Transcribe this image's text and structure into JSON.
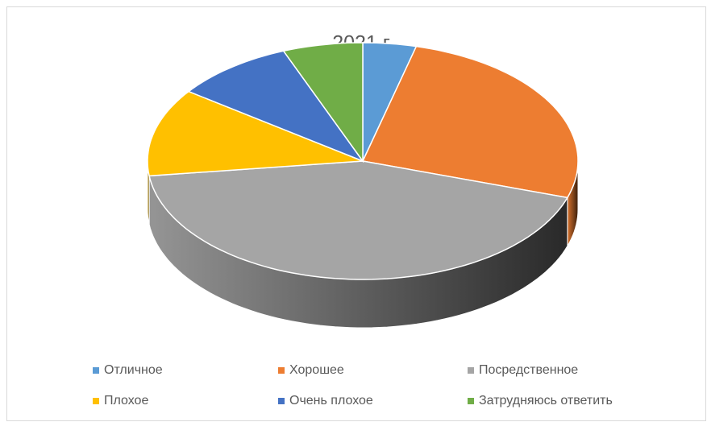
{
  "chart_data": {
    "type": "pie",
    "title": "2021 г.",
    "categories": [
      "Отличное",
      "Хорошее",
      "Посредственное",
      "Плохое",
      "Очень плохое",
      "Затрудняюсь ответить"
    ],
    "values": [
      4,
      26,
      43,
      12,
      9,
      6
    ],
    "colors": [
      "#5b9bd5",
      "#ed7d31",
      "#a5a5a5",
      "#ffc000",
      "#4472c4",
      "#70ad47"
    ],
    "legend": "bottom"
  }
}
